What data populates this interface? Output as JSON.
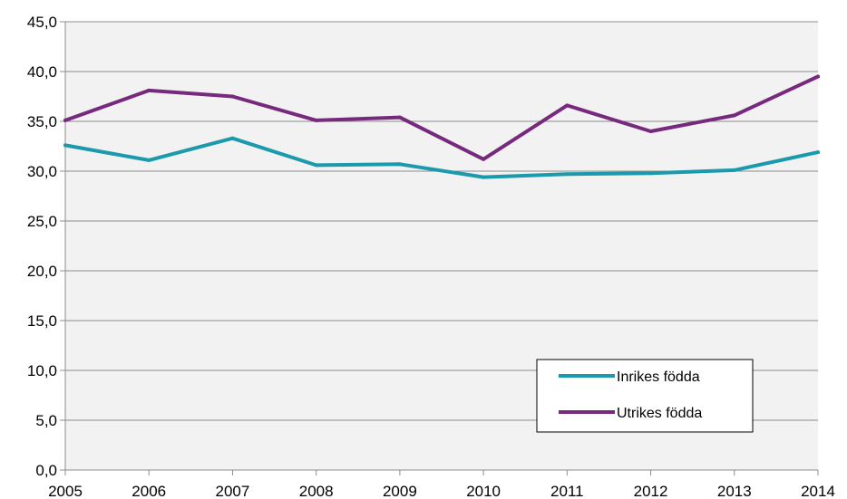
{
  "chart_data": {
    "type": "line",
    "title": "",
    "xlabel": "",
    "ylabel": "",
    "categories": [
      "2005",
      "2006",
      "2007",
      "2008",
      "2009",
      "2010",
      "2011",
      "2012",
      "2013",
      "2014"
    ],
    "ylim": [
      0,
      45
    ],
    "yticks": [
      "0,0",
      "5,0",
      "10,0",
      "15,0",
      "20,0",
      "25,0",
      "30,0",
      "35,0",
      "40,0",
      "45,0"
    ],
    "grid": true,
    "legend_position": "bottom-right",
    "plot_background": "#f2f2f2",
    "series": [
      {
        "name": "Inrikes födda",
        "color": "#1a9aac",
        "values": [
          32.6,
          31.1,
          33.3,
          30.6,
          30.7,
          29.4,
          29.7,
          29.8,
          30.1,
          31.9
        ]
      },
      {
        "name": "Utrikes födda",
        "color": "#772a7d",
        "values": [
          35.1,
          38.1,
          37.5,
          35.1,
          35.4,
          31.2,
          36.6,
          34.0,
          35.6,
          39.5
        ]
      }
    ]
  }
}
